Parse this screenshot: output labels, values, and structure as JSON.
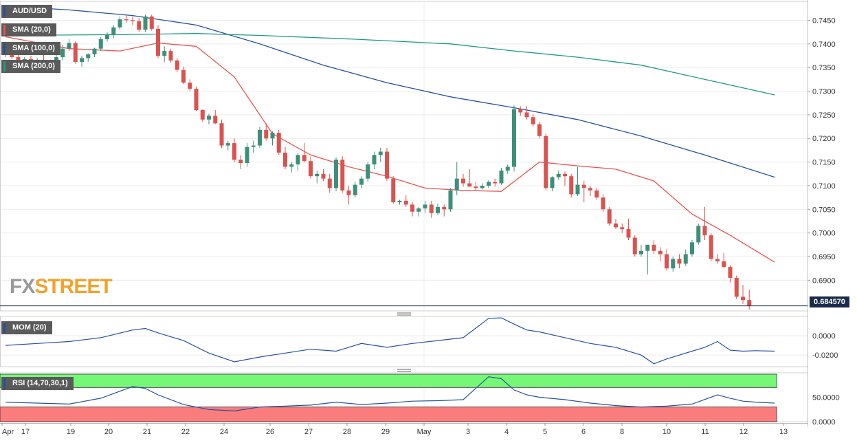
{
  "chart_data": [
    {
      "type": "candlestick",
      "title": "AUD/USD",
      "ylim": [
        0.6835,
        0.749
      ],
      "y_ticks": [
        "0.7450",
        "0.7400",
        "0.7350",
        "0.7300",
        "0.7250",
        "0.7200",
        "0.7150",
        "0.7100",
        "0.7050",
        "0.7000",
        "0.6950",
        "0.6900"
      ],
      "x_ticks": [
        "Apr",
        "17",
        "19",
        "20",
        "21",
        "22",
        "24",
        "26",
        "27",
        "28",
        "29",
        "May",
        "3",
        "4",
        "5",
        "6",
        "8",
        "10",
        "11",
        "12",
        "13"
      ],
      "last_price": "0.684570",
      "candles": [
        [
          0.7394,
          0.74,
          0.7372,
          0.7378
        ],
        [
          0.7378,
          0.7392,
          0.7368,
          0.7372
        ],
        [
          0.7372,
          0.738,
          0.7355,
          0.736
        ],
        [
          0.736,
          0.7372,
          0.7352,
          0.7368
        ],
        [
          0.7368,
          0.7375,
          0.7355,
          0.7358
        ],
        [
          0.7358,
          0.737,
          0.7348,
          0.7365
        ],
        [
          0.7365,
          0.7378,
          0.7355,
          0.7358
        ],
        [
          0.7358,
          0.7365,
          0.735,
          0.7362
        ],
        [
          0.7362,
          0.7378,
          0.736,
          0.7372
        ],
        [
          0.7372,
          0.7398,
          0.7365,
          0.739
        ],
        [
          0.739,
          0.741,
          0.7385,
          0.7402
        ],
        [
          0.7402,
          0.7405,
          0.7358,
          0.7362
        ],
        [
          0.7362,
          0.7375,
          0.7352,
          0.737
        ],
        [
          0.737,
          0.738,
          0.7362,
          0.7378
        ],
        [
          0.7378,
          0.7392,
          0.7372,
          0.739
        ],
        [
          0.739,
          0.7415,
          0.7385,
          0.741
        ],
        [
          0.741,
          0.7425,
          0.7405,
          0.742
        ],
        [
          0.742,
          0.744,
          0.7412,
          0.7435
        ],
        [
          0.7435,
          0.7458,
          0.743,
          0.7452
        ],
        [
          0.7452,
          0.746,
          0.7445,
          0.745
        ],
        [
          0.745,
          0.7458,
          0.744,
          0.7448
        ],
        [
          0.7448,
          0.7455,
          0.7425,
          0.743
        ],
        [
          0.743,
          0.7462,
          0.7425,
          0.7458
        ],
        [
          0.7458,
          0.7462,
          0.7428,
          0.7432
        ],
        [
          0.7432,
          0.744,
          0.737,
          0.7375
        ],
        [
          0.7375,
          0.7395,
          0.7362,
          0.7385
        ],
        [
          0.7385,
          0.739,
          0.736,
          0.7365
        ],
        [
          0.7365,
          0.737,
          0.734,
          0.7345
        ],
        [
          0.7345,
          0.7352,
          0.7315,
          0.7318
        ],
        [
          0.7318,
          0.7325,
          0.73,
          0.7305
        ],
        [
          0.7305,
          0.731,
          0.7258,
          0.726
        ],
        [
          0.726,
          0.7262,
          0.7235,
          0.724
        ],
        [
          0.724,
          0.7252,
          0.723,
          0.7248
        ],
        [
          0.7248,
          0.726,
          0.723,
          0.7232
        ],
        [
          0.7232,
          0.724,
          0.718,
          0.7185
        ],
        [
          0.7185,
          0.7195,
          0.7175,
          0.719
        ],
        [
          0.719,
          0.72,
          0.715,
          0.7155
        ],
        [
          0.7155,
          0.7165,
          0.7135,
          0.7148
        ],
        [
          0.7148,
          0.719,
          0.714,
          0.7182
        ],
        [
          0.7182,
          0.7195,
          0.717,
          0.7185
        ],
        [
          0.7185,
          0.7225,
          0.718,
          0.7218
        ],
        [
          0.7218,
          0.7232,
          0.7195,
          0.72
        ],
        [
          0.72,
          0.7215,
          0.7185,
          0.7212
        ],
        [
          0.7212,
          0.7218,
          0.7165,
          0.717
        ],
        [
          0.717,
          0.7182,
          0.7135,
          0.714
        ],
        [
          0.714,
          0.715,
          0.7128,
          0.7145
        ],
        [
          0.7145,
          0.717,
          0.7132,
          0.7165
        ],
        [
          0.7165,
          0.719,
          0.715,
          0.7152
        ],
        [
          0.7152,
          0.7162,
          0.7115,
          0.712
        ],
        [
          0.712,
          0.7132,
          0.7105,
          0.7125
        ],
        [
          0.7125,
          0.7135,
          0.711,
          0.7115
        ],
        [
          0.7115,
          0.7125,
          0.7085,
          0.7095
        ],
        [
          0.7095,
          0.716,
          0.7088,
          0.7155
        ],
        [
          0.7155,
          0.7162,
          0.7085,
          0.709
        ],
        [
          0.709,
          0.71,
          0.706,
          0.708
        ],
        [
          0.708,
          0.7108,
          0.7075,
          0.7102
        ],
        [
          0.7102,
          0.712,
          0.7095,
          0.7115
        ],
        [
          0.7115,
          0.715,
          0.7108,
          0.7145
        ],
        [
          0.7145,
          0.7172,
          0.7135,
          0.7165
        ],
        [
          0.7165,
          0.718,
          0.715,
          0.7172
        ],
        [
          0.7172,
          0.718,
          0.711,
          0.7115
        ],
        [
          0.7115,
          0.712,
          0.7062,
          0.7065
        ],
        [
          0.7065,
          0.707,
          0.706,
          0.7068
        ],
        [
          0.7068,
          0.708,
          0.7055,
          0.706
        ],
        [
          0.706,
          0.7065,
          0.7035,
          0.7045
        ],
        [
          0.7045,
          0.7055,
          0.7035,
          0.7052
        ],
        [
          0.7052,
          0.7068,
          0.7042,
          0.706
        ],
        [
          0.706,
          0.7068,
          0.7032,
          0.7042
        ],
        [
          0.7042,
          0.7062,
          0.7038,
          0.7055
        ],
        [
          0.7055,
          0.706,
          0.7035,
          0.705
        ],
        [
          0.705,
          0.7095,
          0.7045,
          0.709
        ],
        [
          0.709,
          0.715,
          0.708,
          0.7115
        ],
        [
          0.7115,
          0.7125,
          0.7098,
          0.7105
        ],
        [
          0.7105,
          0.7135,
          0.7098,
          0.7098
        ],
        [
          0.7098,
          0.7108,
          0.709,
          0.7095
        ],
        [
          0.7095,
          0.7105,
          0.7092,
          0.71
        ],
        [
          0.71,
          0.7112,
          0.7095,
          0.7108
        ],
        [
          0.7108,
          0.7115,
          0.7098,
          0.7105
        ],
        [
          0.7105,
          0.7138,
          0.7102,
          0.7132
        ],
        [
          0.7132,
          0.7145,
          0.7125,
          0.714
        ],
        [
          0.714,
          0.727,
          0.713,
          0.7262
        ],
        [
          0.7262,
          0.7268,
          0.7248,
          0.7255
        ],
        [
          0.7255,
          0.7268,
          0.724,
          0.7245
        ],
        [
          0.7245,
          0.7252,
          0.7225,
          0.723
        ],
        [
          0.723,
          0.7235,
          0.72,
          0.7205
        ],
        [
          0.7205,
          0.721,
          0.709,
          0.7095
        ],
        [
          0.7095,
          0.712,
          0.7088,
          0.7118
        ],
        [
          0.7118,
          0.7132,
          0.7112,
          0.7125
        ],
        [
          0.7125,
          0.713,
          0.71,
          0.712
        ],
        [
          0.712,
          0.7125,
          0.7075,
          0.7082
        ],
        [
          0.7082,
          0.714,
          0.7078,
          0.7102
        ],
        [
          0.7102,
          0.711,
          0.7065,
          0.7095
        ],
        [
          0.7095,
          0.71,
          0.7078,
          0.709
        ],
        [
          0.709,
          0.7095,
          0.707,
          0.7075
        ],
        [
          0.7075,
          0.7082,
          0.7045,
          0.705
        ],
        [
          0.705,
          0.7055,
          0.7015,
          0.702
        ],
        [
          0.702,
          0.703,
          0.7008,
          0.7012
        ],
        [
          0.7012,
          0.702,
          0.7,
          0.7008
        ],
        [
          0.7008,
          0.703,
          0.6985,
          0.699
        ],
        [
          0.699,
          0.6995,
          0.695,
          0.6955
        ],
        [
          0.6955,
          0.6975,
          0.695,
          0.6962
        ],
        [
          0.6962,
          0.6975,
          0.6912,
          0.6975
        ],
        [
          0.6975,
          0.6985,
          0.6955,
          0.6962
        ],
        [
          0.6962,
          0.697,
          0.694,
          0.6955
        ],
        [
          0.6955,
          0.6965,
          0.692,
          0.6925
        ],
        [
          0.6925,
          0.695,
          0.6918,
          0.6945
        ],
        [
          0.6945,
          0.6955,
          0.6925,
          0.6935
        ],
        [
          0.6935,
          0.6965,
          0.693,
          0.6955
        ],
        [
          0.6955,
          0.6985,
          0.695,
          0.698
        ],
        [
          0.698,
          0.702,
          0.6975,
          0.7015
        ],
        [
          0.7015,
          0.7055,
          0.6985,
          0.6995
        ],
        [
          0.6995,
          0.7,
          0.694,
          0.6945
        ],
        [
          0.6945,
          0.6955,
          0.6935,
          0.694
        ],
        [
          0.694,
          0.6958,
          0.6925,
          0.6928
        ],
        [
          0.6928,
          0.6932,
          0.6895,
          0.6905
        ],
        [
          0.6905,
          0.691,
          0.686,
          0.6865
        ],
        [
          0.6865,
          0.689,
          0.685,
          0.6858
        ],
        [
          0.6858,
          0.688,
          0.6838,
          0.6846
        ]
      ],
      "series": [
        {
          "name": "SMA (20,0)",
          "color": "#e8524f",
          "x": [
            0,
            10,
            18,
            24,
            30,
            36,
            42,
            48,
            54,
            60,
            66,
            72,
            78,
            84,
            90,
            96,
            102,
            108,
            114,
            121
          ],
          "values": [
            0.7415,
            0.739,
            0.7385,
            0.7402,
            0.7395,
            0.733,
            0.721,
            0.7165,
            0.714,
            0.712,
            0.7095,
            0.709,
            0.7088,
            0.715,
            0.7142,
            0.7135,
            0.711,
            0.704,
            0.6995,
            0.6938
          ]
        },
        {
          "name": "SMA (100,0)",
          "color": "#2550a0",
          "x": [
            0,
            10,
            20,
            30,
            40,
            50,
            60,
            70,
            80,
            90,
            100,
            110,
            121
          ],
          "values": [
            0.748,
            0.7472,
            0.746,
            0.744,
            0.74,
            0.7355,
            0.7318,
            0.7288,
            0.7265,
            0.724,
            0.7205,
            0.7165,
            0.7118
          ]
        },
        {
          "name": "SMA (200,0)",
          "color": "#1f9a86",
          "x": [
            0,
            20,
            30,
            40,
            55,
            70,
            80,
            90,
            100,
            110,
            121
          ],
          "values": [
            0.7418,
            0.742,
            0.7422,
            0.7418,
            0.741,
            0.74,
            0.7385,
            0.7372,
            0.7355,
            0.7325,
            0.7292
          ]
        }
      ]
    },
    {
      "type": "line",
      "title": "MOM (20)",
      "ylim": [
        -0.032,
        0.02
      ],
      "y_ticks": [
        "0.0000",
        "-0.0200"
      ],
      "series": [
        {
          "color": "#2550a0",
          "x": [
            0,
            5,
            10,
            15,
            20,
            22,
            24,
            28,
            32,
            36,
            40,
            44,
            48,
            52,
            56,
            60,
            64,
            68,
            72,
            76,
            78,
            80,
            82,
            84,
            88,
            92,
            96,
            100,
            102,
            104,
            106,
            108,
            110,
            112,
            114,
            116,
            118,
            121
          ],
          "values": [
            -0.01,
            -0.008,
            -0.006,
            -0.002,
            0.006,
            0.0075,
            0.003,
            -0.005,
            -0.018,
            -0.027,
            -0.022,
            -0.018,
            -0.014,
            -0.016,
            -0.008,
            -0.012,
            -0.008,
            -0.005,
            -0.002,
            0.018,
            0.0185,
            0.012,
            0.006,
            0.004,
            -0.002,
            -0.008,
            -0.012,
            -0.02,
            -0.029,
            -0.024,
            -0.02,
            -0.016,
            -0.012,
            -0.006,
            -0.015,
            -0.016,
            -0.0155,
            -0.016
          ]
        }
      ]
    },
    {
      "type": "line",
      "title": "RSI (14,70,30,1)",
      "ylim": [
        0,
        100
      ],
      "y_ticks": [
        "50.0000",
        "0.0000"
      ],
      "overbought": 70,
      "oversold": 30,
      "series": [
        {
          "color": "#2550a0",
          "x": [
            0,
            5,
            10,
            15,
            20,
            22,
            24,
            28,
            32,
            36,
            40,
            44,
            48,
            52,
            56,
            60,
            64,
            68,
            72,
            76,
            78,
            80,
            82,
            84,
            88,
            92,
            96,
            100,
            104,
            108,
            112,
            114,
            116,
            118,
            121
          ],
          "values": [
            40,
            38,
            36,
            48,
            72,
            68,
            55,
            35,
            25,
            22,
            30,
            32,
            34,
            40,
            35,
            38,
            42,
            43,
            45,
            92,
            88,
            65,
            55,
            50,
            45,
            38,
            33,
            30,
            32,
            36,
            55,
            48,
            42,
            40,
            38
          ]
        }
      ]
    }
  ]
}
